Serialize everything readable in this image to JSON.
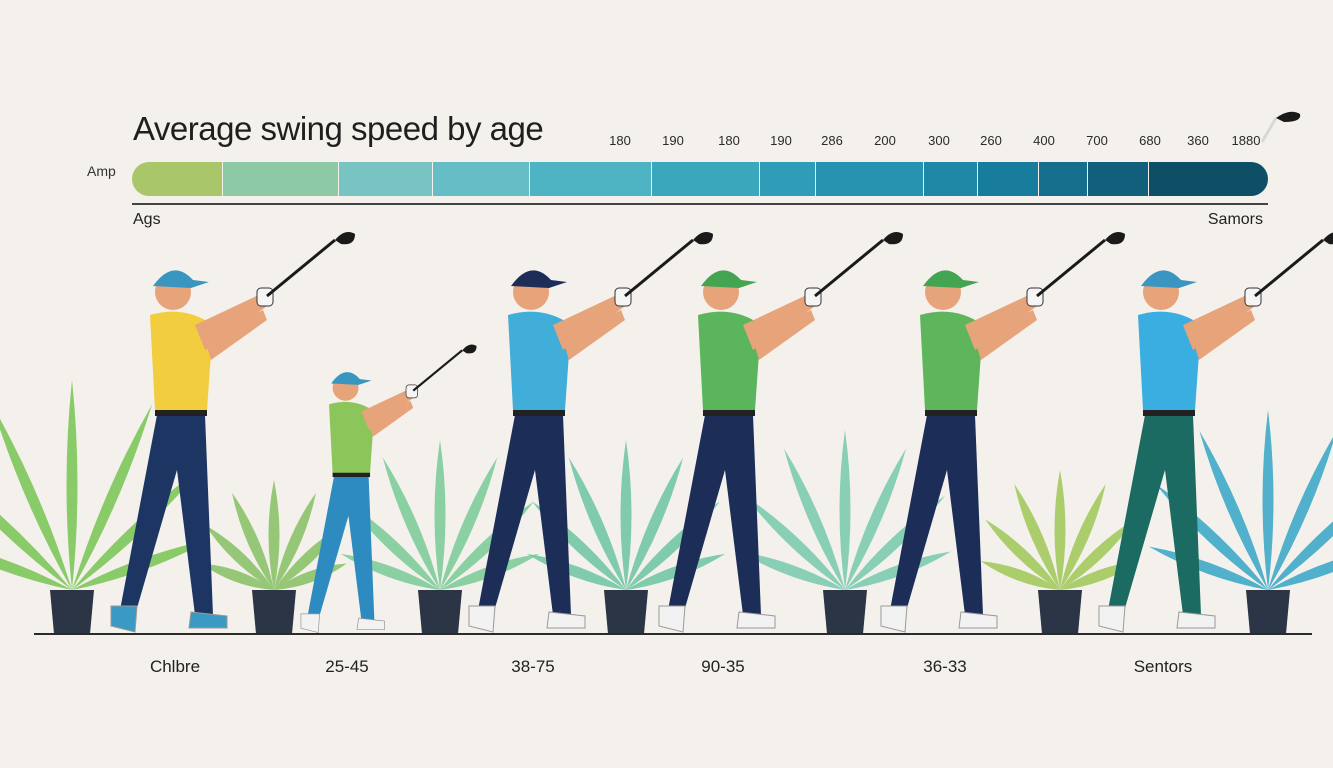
{
  "title": "Average swing speed by age",
  "amp_label": "Amp",
  "ages_label": "Ags",
  "seniors_label": "Samors",
  "ticks": [
    "180",
    "190",
    "180",
    "190",
    "286",
    "200",
    "300",
    "260",
    "400",
    "700",
    "680",
    "360",
    "1880"
  ],
  "gradient_colors": [
    "#a9c76a",
    "#8ec9a6",
    "#77c4c3",
    "#66bdc6",
    "#4eb3c3",
    "#3aa7bd",
    "#2f9db8",
    "#2893b0",
    "#1f88a6",
    "#187d9c",
    "#156f8c",
    "#115f7a",
    "#0e4f66"
  ],
  "groups": [
    {
      "label": "Chlbre",
      "shirt": "#f2cd3d",
      "pants": "#1d3563",
      "cap": "#3a96c0",
      "size": "adult"
    },
    {
      "label": "25-45",
      "shirt": "#8cc65a",
      "pants": "#2e8bc0",
      "cap": "#3a96c0",
      "size": "child"
    },
    {
      "label": "38-75",
      "shirt": "#41aed9",
      "pants": "#1c2e58",
      "cap": "#1c2e58",
      "size": "adult"
    },
    {
      "label": "90-35",
      "shirt": "#5ab55c",
      "pants": "#1c2e58",
      "cap": "#43a551",
      "size": "adult"
    },
    {
      "label": "36-33",
      "shirt": "#5fb55c",
      "pants": "#1c2e58",
      "cap": "#43a551",
      "size": "adult"
    },
    {
      "label": "Sentors",
      "shirt": "#3aaee0",
      "pants": "#1b6b62",
      "cap": "#3a96c0",
      "size": "adult"
    }
  ],
  "plant_colors": [
    "#7ec65b",
    "#8cc26a",
    "#7fcc9a",
    "#74c7a6",
    "#7ccbb0",
    "#a3c95e",
    "#3fa8c8"
  ]
}
